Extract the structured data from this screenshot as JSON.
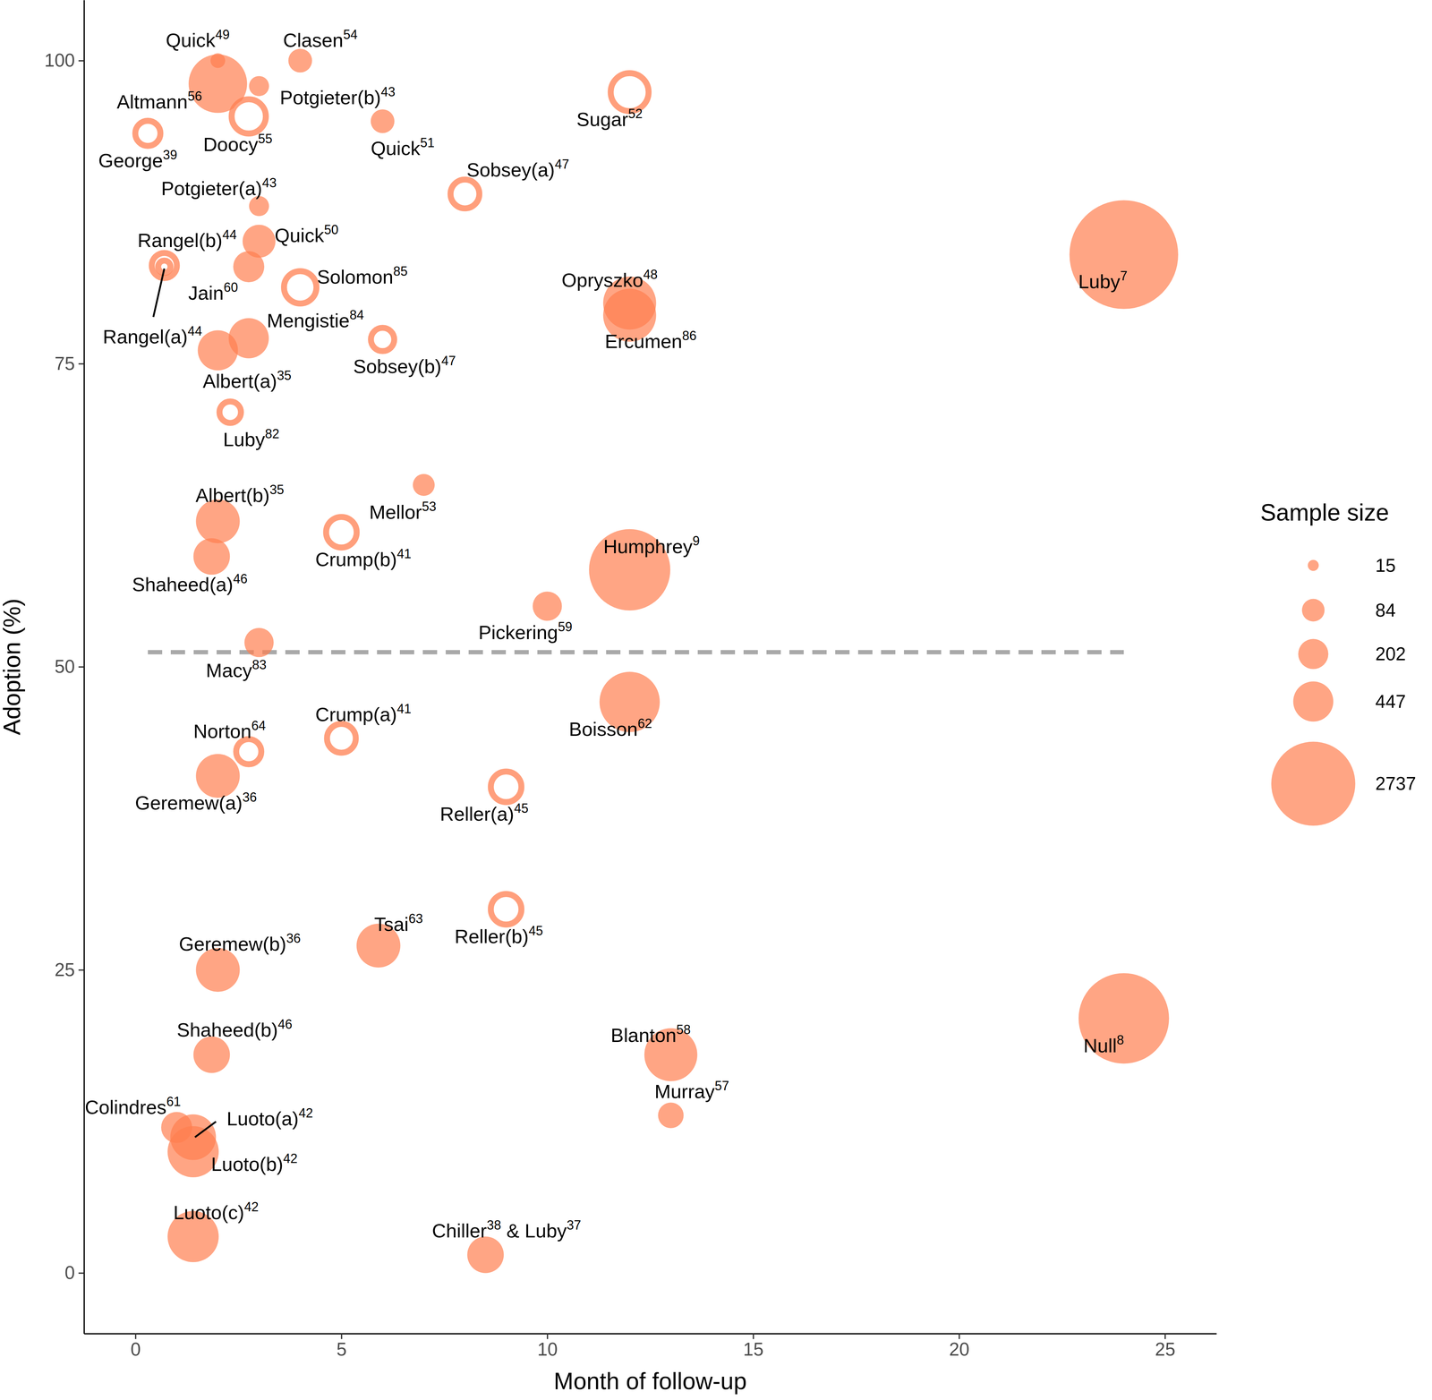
{
  "chart_data": {
    "type": "scatter",
    "x_label": "Month of follow-up",
    "y_label": "Adoption (%)",
    "xlim": [
      -1.25,
      26.25
    ],
    "ylim": [
      -5,
      105
    ],
    "xticks": [
      0,
      5,
      10,
      15,
      20,
      25
    ],
    "yticks": [
      0,
      25,
      50,
      75,
      100
    ],
    "grid": false,
    "color": "#FF7F50",
    "labels": [
      [
        "Quick",
        "49"
      ],
      [
        "Clasen",
        "54"
      ],
      [
        "Altmann",
        "56"
      ],
      [
        "Potgieter(b)",
        "43"
      ],
      [
        "Doocy",
        "55"
      ],
      [
        "George",
        "39"
      ],
      [
        "Quick",
        "51"
      ],
      [
        "Sugar",
        "52"
      ],
      [
        "Sobsey(a)",
        "47"
      ],
      [
        "Potgieter(a)",
        "43"
      ],
      [
        "Quick",
        "50"
      ],
      [
        "Rangel(b)",
        "44"
      ],
      [
        "Rangel(a)",
        "44"
      ],
      [
        "Jain",
        "60"
      ],
      [
        "Solomon",
        "85"
      ],
      [
        "Opryszko",
        "48"
      ],
      [
        "Ercumen",
        "86"
      ],
      [
        "Luby",
        "7"
      ],
      [
        "Mengistie",
        "84"
      ],
      [
        "Albert(a)",
        "35"
      ],
      [
        "Sobsey(b)",
        "47"
      ],
      [
        "Luby",
        "82"
      ],
      [
        "Mellor",
        "53"
      ],
      [
        "Albert(b)",
        "35"
      ],
      [
        "Crump(b)",
        "41"
      ],
      [
        "Shaheed(a)",
        "46"
      ],
      [
        "Humphrey",
        "9"
      ],
      [
        "Pickering",
        "59"
      ],
      [
        "Macy",
        "83"
      ],
      [
        "Boisson",
        "62"
      ],
      [
        "Norton",
        "64"
      ],
      [
        "Crump(a)",
        "41"
      ],
      [
        "Geremew(a)",
        "36"
      ],
      [
        "Reller(a)",
        "45"
      ],
      [
        "Reller(b)",
        "45"
      ],
      [
        "Tsai",
        "63"
      ],
      [
        "Geremew(b)",
        "36"
      ],
      [
        "Null",
        "8"
      ],
      [
        "Blanton",
        "58"
      ],
      [
        "Shaheed(b)",
        "46"
      ],
      [
        "Murray",
        "57"
      ],
      [
        "Colindres",
        "61"
      ],
      [
        "Luoto(a)",
        "42"
      ],
      [
        "Luoto(b)",
        "42"
      ],
      [
        "Luoto(c)",
        "42"
      ],
      [
        "Chiller",
        "38",
        " & Luby",
        "37"
      ]
    ],
    "x": [
      2,
      4,
      2,
      3,
      2.75,
      0.3,
      6,
      12,
      8,
      3,
      3,
      0.7,
      0.7,
      2.75,
      4,
      12,
      12,
      24,
      2.75,
      2,
      6,
      2.3,
      7,
      2,
      5,
      1.85,
      12,
      10,
      3,
      12,
      2.75,
      5,
      2,
      9,
      9,
      5.9,
      2,
      24,
      13,
      1.85,
      13,
      1,
      1.4,
      1.4,
      1.4,
      8.5
    ],
    "values": [
      100,
      100,
      98.1,
      97.9,
      95.4,
      94,
      95,
      97.4,
      89,
      88,
      85.1,
      83.1,
      83,
      83,
      81.3,
      80,
      79,
      84,
      77.1,
      76.1,
      77,
      71,
      65,
      62,
      61.1,
      59.1,
      58,
      55,
      52,
      47.1,
      43,
      44.1,
      41,
      40.1,
      30,
      27,
      25,
      21,
      18,
      18,
      13,
      12,
      11.2,
      10,
      3,
      1.5
    ],
    "sizes": [
      22,
      98,
      1165,
      57,
      450,
      221,
      98,
      566,
      303,
      57,
      260,
      221,
      42,
      221,
      398,
      915,
      915,
      4885,
      450,
      450,
      185,
      153,
      76,
      566,
      348,
      348,
      2537,
      185,
      185,
      1255,
      221,
      303,
      566,
      348,
      348,
      566,
      566,
      3234,
      915,
      348,
      124,
      221,
      629,
      838,
      838,
      348
    ],
    "markers": [
      "filled",
      "filled",
      "filled",
      "filled",
      "hollow",
      "hollow",
      "filled",
      "hollow",
      "hollow",
      "filled",
      "filled",
      "hollow",
      "hollow",
      "filled",
      "hollow",
      "filled",
      "filled",
      "filled",
      "filled",
      "filled",
      "hollow",
      "hollow",
      "filled",
      "filled",
      "hollow",
      "filled",
      "filled",
      "filled",
      "filled",
      "filled",
      "hollow",
      "hollow",
      "filled",
      "hollow",
      "hollow",
      "filled",
      "filled",
      "filled",
      "filled",
      "filled",
      "filled",
      "filled",
      "filled",
      "filled",
      "filled",
      "filled"
    ],
    "reference_line": {
      "y": 51.2,
      "x": [
        0.3,
        24
      ],
      "color": "#A9A9A9",
      "line_style": "dashed"
    },
    "size_legend": {
      "title": "Sample size",
      "values": [
        15,
        84,
        202,
        447,
        2737
      ]
    }
  }
}
